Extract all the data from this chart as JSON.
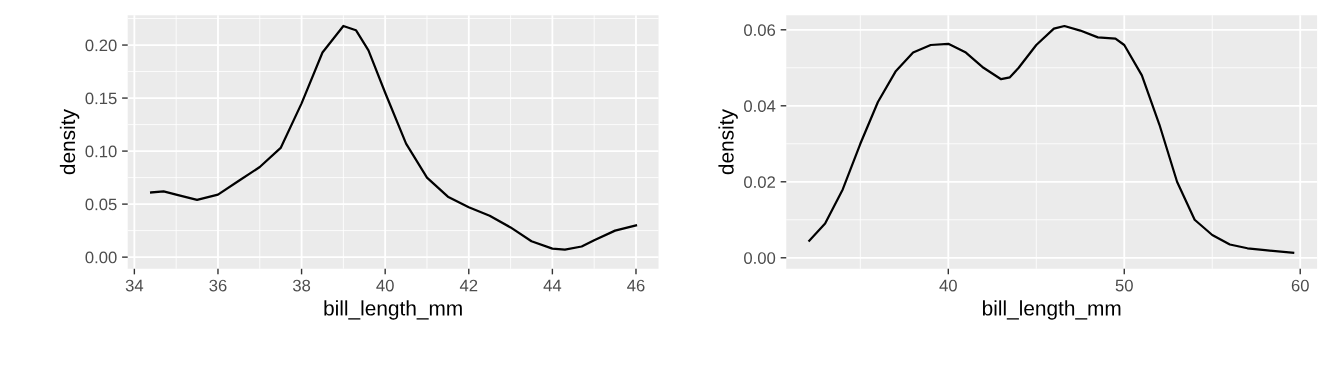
{
  "chart_data": [
    {
      "type": "line",
      "xlabel": "bill_length_mm",
      "ylabel": "density",
      "grid": true,
      "xlim": [
        33.84,
        46.54
      ],
      "ylim": [
        -0.011,
        0.228
      ],
      "xticks": [
        34,
        36,
        38,
        40,
        42,
        44,
        46
      ],
      "yticks": [
        {
          "value": 0,
          "label": "0.00"
        },
        {
          "value": 0.05,
          "label": "0.05"
        },
        {
          "value": 0.1,
          "label": "0.10"
        },
        {
          "value": 0.15,
          "label": "0.15"
        },
        {
          "value": 0.2,
          "label": "0.20"
        }
      ],
      "x": [
        34.4,
        34.7,
        35.0,
        35.5,
        36.0,
        36.5,
        37.0,
        37.5,
        38.0,
        38.5,
        39.0,
        39.3,
        39.6,
        40.0,
        40.5,
        41.0,
        41.5,
        42.0,
        42.5,
        43.0,
        43.5,
        44.0,
        44.3,
        44.7,
        45.0,
        45.5,
        46.0
      ],
      "series": [
        {
          "color": "#000000",
          "values": [
            0.061,
            0.062,
            0.059,
            0.054,
            0.059,
            0.072,
            0.085,
            0.103,
            0.145,
            0.193,
            0.218,
            0.214,
            0.195,
            0.155,
            0.107,
            0.075,
            0.057,
            0.047,
            0.039,
            0.028,
            0.015,
            0.008,
            0.007,
            0.01,
            0.016,
            0.025,
            0.03
          ]
        }
      ]
    },
    {
      "type": "line",
      "xlabel": "bill_length_mm",
      "ylabel": "density",
      "grid": true,
      "xlim": [
        30.79,
        60.96
      ],
      "ylim": [
        -0.0029,
        0.0638
      ],
      "xticks": [
        40,
        50,
        60
      ],
      "yticks": [
        {
          "value": 0,
          "label": "0.00"
        },
        {
          "value": 0.02,
          "label": "0.02"
        },
        {
          "value": 0.04,
          "label": "0.04"
        },
        {
          "value": 0.06,
          "label": "0.06"
        }
      ],
      "x": [
        32.1,
        33,
        34,
        35,
        36,
        37,
        38,
        39,
        40,
        41,
        42,
        43,
        43.5,
        44,
        45,
        46,
        46.6,
        47.5,
        48.5,
        49.5,
        50,
        51,
        52,
        53,
        54,
        55,
        56,
        57,
        58,
        59.6
      ],
      "series": [
        {
          "color": "#000000",
          "values": [
            0.0045,
            0.009,
            0.018,
            0.03,
            0.041,
            0.049,
            0.054,
            0.056,
            0.0563,
            0.054,
            0.05,
            0.047,
            0.0475,
            0.05,
            0.056,
            0.0603,
            0.061,
            0.0598,
            0.058,
            0.0577,
            0.056,
            0.048,
            0.035,
            0.02,
            0.01,
            0.006,
            0.0035,
            0.0025,
            0.002,
            0.0013
          ]
        }
      ]
    }
  ]
}
